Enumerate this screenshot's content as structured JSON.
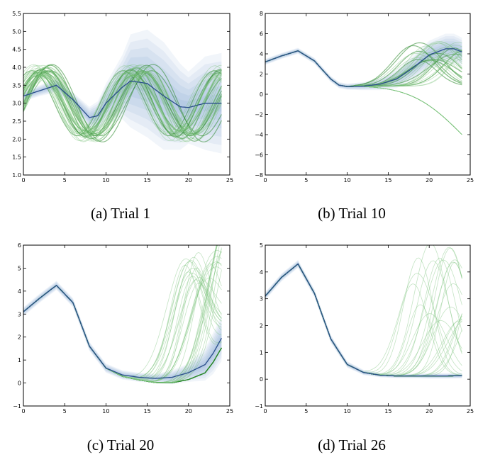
{
  "colors": {
    "mean_line": "#2a4e8c",
    "band": "#3b6bb8",
    "sample_strong": "#2e8b2e",
    "sample_light": "#7cc47c"
  },
  "chart_data": [
    {
      "type": "line",
      "caption": "(a) Trial 1",
      "xlim": [
        0,
        25
      ],
      "ylim": [
        1.0,
        5.5
      ],
      "xticks": [
        "0",
        "5",
        "10",
        "15",
        "20",
        "25"
      ],
      "yticks": [
        "1.0",
        "1.5",
        "2.0",
        "2.5",
        "3.0",
        "3.5",
        "4.0",
        "4.5",
        "5.0",
        "5.5"
      ],
      "mean": {
        "x": [
          0,
          2,
          4,
          6,
          8,
          9,
          10,
          12,
          13,
          15,
          17,
          19,
          20,
          22,
          24
        ],
        "y": [
          3.2,
          3.35,
          3.5,
          3.1,
          2.6,
          2.65,
          3.0,
          3.45,
          3.62,
          3.55,
          3.2,
          2.9,
          2.88,
          3.0,
          3.0
        ]
      },
      "band_width": [
        0.15,
        0.15,
        0.2,
        0.2,
        0.3,
        0.4,
        0.55,
        0.9,
        1.3,
        1.5,
        1.5,
        1.2,
        1.0,
        1.3,
        1.4
      ]
    },
    {
      "type": "line",
      "caption": "(b) Trial 10",
      "xlim": [
        0,
        25
      ],
      "ylim": [
        -8,
        8
      ],
      "xticks": [
        "0",
        "5",
        "10",
        "15",
        "20",
        "25"
      ],
      "yticks": [
        "−8",
        "−6",
        "−4",
        "−2",
        "0",
        "2",
        "4",
        "6",
        "8"
      ],
      "mean": {
        "x": [
          0,
          2,
          4,
          6,
          8,
          9,
          10,
          12,
          14,
          16,
          18,
          20,
          22,
          23,
          24
        ],
        "y": [
          3.2,
          3.8,
          4.3,
          3.3,
          1.5,
          0.9,
          0.75,
          0.8,
          1.0,
          1.5,
          2.6,
          3.9,
          4.5,
          4.5,
          4.2
        ]
      },
      "band_width": [
        0.3,
        0.3,
        0.3,
        0.3,
        0.3,
        0.3,
        0.3,
        0.4,
        0.6,
        0.9,
        1.2,
        1.4,
        1.5,
        1.5,
        1.4
      ]
    },
    {
      "type": "line",
      "caption": "(c) Trial 20",
      "xlim": [
        0,
        25
      ],
      "ylim": [
        -1,
        6
      ],
      "xticks": [
        "0",
        "5",
        "10",
        "15",
        "20",
        "25"
      ],
      "yticks": [
        "−1",
        "0",
        "1",
        "2",
        "3",
        "4",
        "5",
        "6"
      ],
      "mean": {
        "x": [
          0,
          2,
          4,
          6,
          8,
          10,
          12,
          14,
          16,
          18,
          20,
          22,
          23,
          24
        ],
        "y": [
          3.1,
          3.7,
          4.25,
          3.5,
          1.6,
          0.65,
          0.35,
          0.25,
          0.2,
          0.25,
          0.45,
          0.8,
          1.3,
          1.95
        ]
      },
      "band_width": [
        0.2,
        0.2,
        0.2,
        0.2,
        0.2,
        0.2,
        0.2,
        0.2,
        0.2,
        0.3,
        0.4,
        0.7,
        0.9,
        1.0
      ]
    },
    {
      "type": "line",
      "caption": "(d) Trial 26",
      "xlim": [
        0,
        25
      ],
      "ylim": [
        -1,
        5
      ],
      "xticks": [
        "0",
        "5",
        "10",
        "15",
        "20",
        "25"
      ],
      "yticks": [
        "−1",
        "0",
        "1",
        "2",
        "3",
        "4",
        "5"
      ],
      "mean": {
        "x": [
          0,
          2,
          4,
          6,
          8,
          10,
          12,
          14,
          16,
          18,
          20,
          22,
          24
        ],
        "y": [
          3.1,
          3.8,
          4.3,
          3.2,
          1.5,
          0.55,
          0.25,
          0.15,
          0.12,
          0.12,
          0.12,
          0.12,
          0.13
        ]
      },
      "band_width": [
        0.15,
        0.15,
        0.15,
        0.15,
        0.15,
        0.12,
        0.1,
        0.08,
        0.08,
        0.08,
        0.1,
        0.1,
        0.1
      ]
    }
  ]
}
